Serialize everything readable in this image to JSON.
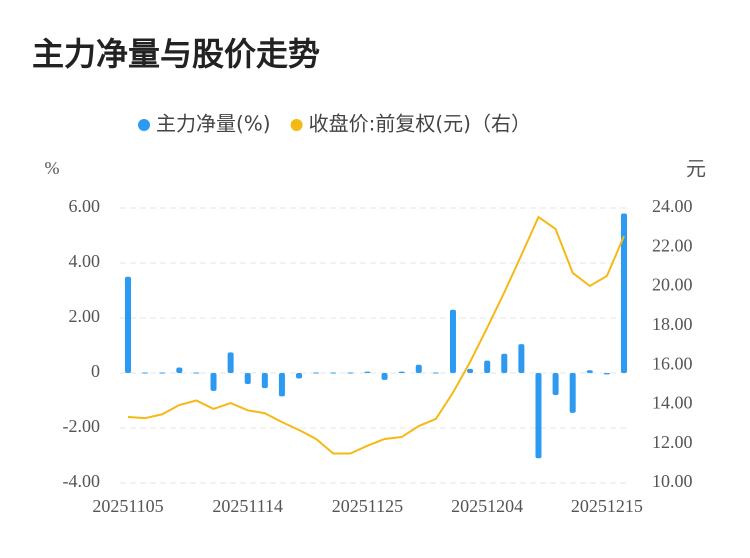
{
  "chart_data": {
    "type": "bar",
    "title": "主力净量与股价走势",
    "y_label": "%",
    "y2_label": "元",
    "categories": [
      "20251105",
      null,
      null,
      null,
      null,
      null,
      null,
      "20251114",
      null,
      null,
      null,
      null,
      null,
      null,
      "20251125",
      null,
      null,
      null,
      null,
      null,
      null,
      "20251204",
      null,
      null,
      null,
      null,
      null,
      null,
      "20251215",
      null
    ],
    "series": [
      {
        "name": "主力净量(%)",
        "type": "bar",
        "color": "#2b9af0",
        "values": [
          3.5,
          0.02,
          0.02,
          0.2,
          0.02,
          -0.65,
          0.75,
          -0.4,
          -0.55,
          -0.85,
          -0.2,
          0.02,
          0.02,
          0.02,
          0.05,
          -0.25,
          0.05,
          0.3,
          0.02,
          2.3,
          0.15,
          0.45,
          0.7,
          1.05,
          -3.1,
          -0.8,
          -1.45,
          0.1,
          -0.05,
          5.8
        ]
      },
      {
        "name": "收盘价:前复权(元)（右）",
        "type": "line",
        "axis": "y2",
        "color": "#f5b915",
        "values": [
          13.36,
          13.3,
          13.5,
          13.97,
          14.2,
          13.77,
          14.07,
          13.7,
          13.55,
          13.1,
          12.7,
          12.24,
          11.5,
          11.5,
          11.9,
          12.24,
          12.34,
          12.9,
          13.26,
          14.6,
          16.16,
          17.9,
          19.7,
          21.6,
          23.54,
          22.93,
          20.7,
          20.03,
          20.54,
          22.57
        ]
      }
    ],
    "ylim": [
      -4,
      6
    ],
    "yticks": [
      {
        "value": -4,
        "label": "-4.00"
      },
      {
        "value": -2,
        "label": "-2.00"
      },
      0,
      {
        "value": 2,
        "label": "2.00"
      },
      {
        "value": 4,
        "label": "4.00"
      },
      {
        "value": 6,
        "label": "6.00"
      }
    ],
    "y2lim": [
      10,
      24
    ],
    "y2ticks": [
      {
        "value": 10,
        "label": "10.00"
      },
      {
        "value": 12,
        "label": "12.00"
      },
      {
        "value": 14,
        "label": "14.00"
      },
      {
        "value": 16,
        "label": "16.00"
      },
      {
        "value": 18,
        "label": "18.00"
      },
      {
        "value": 20,
        "label": "20.00"
      },
      {
        "value": 22,
        "label": "22.00"
      },
      {
        "value": 24,
        "label": "24.00"
      }
    ],
    "grid": true
  }
}
